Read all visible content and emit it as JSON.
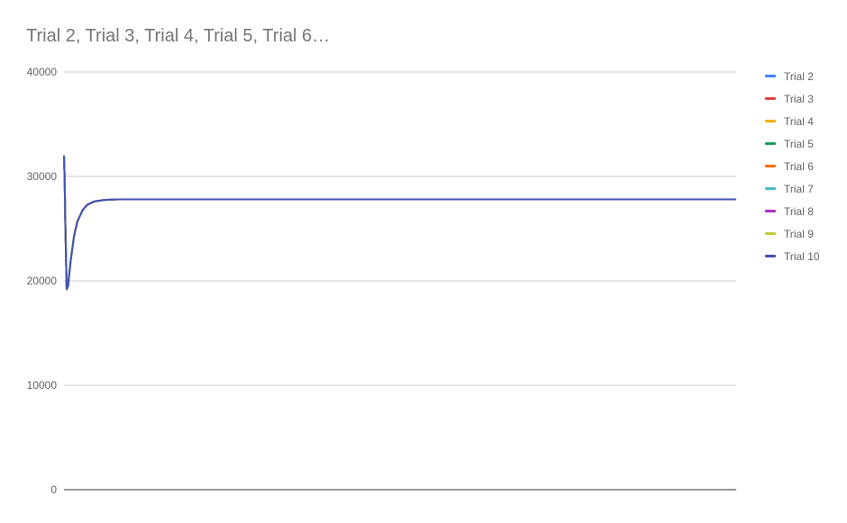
{
  "chart_data": {
    "type": "line",
    "title": "Trial 2, Trial 3, Trial 4, Trial 5, Trial 6…",
    "xlabel": "",
    "ylabel": "",
    "ylim": [
      0,
      40000
    ],
    "yticks": [
      0,
      10000,
      20000,
      30000,
      40000
    ],
    "ytick_labels": [
      "0",
      "10000",
      "20000",
      "30000",
      "40000"
    ],
    "grid": true,
    "legend_position": "right",
    "xlim": [
      0,
      1000
    ],
    "series": [
      {
        "name": "Trial 2",
        "color": "#4285f4",
        "points": [
          [
            0,
            32000
          ],
          [
            1,
            30000
          ],
          [
            2,
            25500
          ],
          [
            4,
            19200
          ],
          [
            6,
            19500
          ],
          [
            10,
            22000
          ],
          [
            15,
            24300
          ],
          [
            20,
            25700
          ],
          [
            28,
            26800
          ],
          [
            35,
            27300
          ],
          [
            45,
            27600
          ],
          [
            60,
            27750
          ],
          [
            80,
            27800
          ],
          [
            200,
            27800
          ],
          [
            400,
            27800
          ],
          [
            600,
            27800
          ],
          [
            800,
            27800
          ],
          [
            1000,
            27800
          ]
        ]
      },
      {
        "name": "Trial 3",
        "color": "#db4437",
        "points": [
          [
            0,
            32000
          ],
          [
            1,
            30000
          ],
          [
            2,
            25500
          ],
          [
            4,
            19200
          ],
          [
            6,
            19500
          ],
          [
            10,
            22000
          ],
          [
            15,
            24300
          ],
          [
            20,
            25700
          ],
          [
            28,
            26800
          ],
          [
            35,
            27300
          ],
          [
            45,
            27600
          ],
          [
            60,
            27750
          ],
          [
            80,
            27800
          ],
          [
            200,
            27800
          ],
          [
            400,
            27800
          ],
          [
            600,
            27800
          ],
          [
            800,
            27800
          ],
          [
            1000,
            27800
          ]
        ]
      },
      {
        "name": "Trial 4",
        "color": "#f4b400",
        "points": [
          [
            0,
            32000
          ],
          [
            1,
            30000
          ],
          [
            2,
            25500
          ],
          [
            4,
            19200
          ],
          [
            6,
            19500
          ],
          [
            10,
            22000
          ],
          [
            15,
            24300
          ],
          [
            20,
            25700
          ],
          [
            28,
            26800
          ],
          [
            35,
            27300
          ],
          [
            45,
            27600
          ],
          [
            60,
            27750
          ],
          [
            80,
            27800
          ],
          [
            200,
            27800
          ],
          [
            400,
            27800
          ],
          [
            600,
            27800
          ],
          [
            800,
            27800
          ],
          [
            1000,
            27800
          ]
        ]
      },
      {
        "name": "Trial 5",
        "color": "#0f9d58",
        "points": [
          [
            0,
            32000
          ],
          [
            1,
            30000
          ],
          [
            2,
            25500
          ],
          [
            4,
            19200
          ],
          [
            6,
            19500
          ],
          [
            10,
            22000
          ],
          [
            15,
            24300
          ],
          [
            20,
            25700
          ],
          [
            28,
            26800
          ],
          [
            35,
            27300
          ],
          [
            45,
            27600
          ],
          [
            60,
            27750
          ],
          [
            80,
            27800
          ],
          [
            200,
            27800
          ],
          [
            400,
            27800
          ],
          [
            600,
            27800
          ],
          [
            800,
            27800
          ],
          [
            1000,
            27800
          ]
        ]
      },
      {
        "name": "Trial 6",
        "color": "#ff6d00",
        "points": [
          [
            0,
            32000
          ],
          [
            1,
            30000
          ],
          [
            2,
            25500
          ],
          [
            4,
            19200
          ],
          [
            6,
            19500
          ],
          [
            10,
            22000
          ],
          [
            15,
            24300
          ],
          [
            20,
            25700
          ],
          [
            28,
            26800
          ],
          [
            35,
            27300
          ],
          [
            45,
            27600
          ],
          [
            60,
            27750
          ],
          [
            80,
            27800
          ],
          [
            200,
            27800
          ],
          [
            400,
            27800
          ],
          [
            600,
            27800
          ],
          [
            800,
            27800
          ],
          [
            1000,
            27800
          ]
        ]
      },
      {
        "name": "Trial 7",
        "color": "#46bdc6",
        "points": [
          [
            0,
            32000
          ],
          [
            1,
            30000
          ],
          [
            2,
            25500
          ],
          [
            4,
            19200
          ],
          [
            6,
            19500
          ],
          [
            10,
            22000
          ],
          [
            15,
            24300
          ],
          [
            20,
            25700
          ],
          [
            28,
            26800
          ],
          [
            35,
            27300
          ],
          [
            45,
            27600
          ],
          [
            60,
            27750
          ],
          [
            80,
            27800
          ],
          [
            200,
            27800
          ],
          [
            400,
            27800
          ],
          [
            600,
            27800
          ],
          [
            800,
            27800
          ],
          [
            1000,
            27800
          ]
        ]
      },
      {
        "name": "Trial 8",
        "color": "#ab30c4",
        "points": [
          [
            0,
            32000
          ],
          [
            1,
            30000
          ],
          [
            2,
            25500
          ],
          [
            4,
            19200
          ],
          [
            6,
            19500
          ],
          [
            10,
            22000
          ],
          [
            15,
            24300
          ],
          [
            20,
            25700
          ],
          [
            28,
            26800
          ],
          [
            35,
            27300
          ],
          [
            45,
            27600
          ],
          [
            60,
            27750
          ],
          [
            80,
            27800
          ],
          [
            200,
            27800
          ],
          [
            400,
            27800
          ],
          [
            600,
            27800
          ],
          [
            800,
            27800
          ],
          [
            1000,
            27800
          ]
        ]
      },
      {
        "name": "Trial 9",
        "color": "#c0ca33",
        "points": [
          [
            0,
            32000
          ],
          [
            1,
            30000
          ],
          [
            2,
            25500
          ],
          [
            4,
            19200
          ],
          [
            6,
            19500
          ],
          [
            10,
            22000
          ],
          [
            15,
            24300
          ],
          [
            20,
            25700
          ],
          [
            28,
            26800
          ],
          [
            35,
            27300
          ],
          [
            45,
            27600
          ],
          [
            60,
            27750
          ],
          [
            80,
            27800
          ],
          [
            200,
            27800
          ],
          [
            400,
            27800
          ],
          [
            600,
            27800
          ],
          [
            800,
            27800
          ],
          [
            1000,
            27800
          ]
        ]
      },
      {
        "name": "Trial 10",
        "color": "#3f51b5",
        "points": [
          [
            0,
            32000
          ],
          [
            1,
            30000
          ],
          [
            2,
            25500
          ],
          [
            4,
            19200
          ],
          [
            6,
            19500
          ],
          [
            10,
            22000
          ],
          [
            15,
            24300
          ],
          [
            20,
            25700
          ],
          [
            28,
            26800
          ],
          [
            35,
            27300
          ],
          [
            45,
            27600
          ],
          [
            60,
            27750
          ],
          [
            80,
            27800
          ],
          [
            200,
            27800
          ],
          [
            400,
            27800
          ],
          [
            600,
            27800
          ],
          [
            800,
            27800
          ],
          [
            1000,
            27800
          ]
        ]
      }
    ]
  }
}
